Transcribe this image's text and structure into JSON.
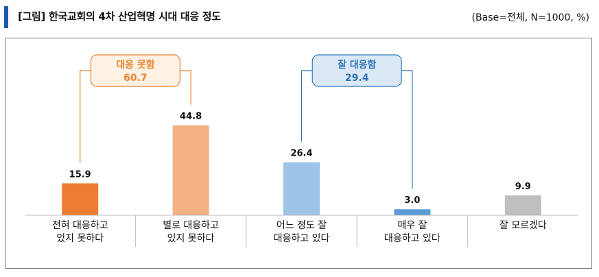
{
  "header": {
    "title": "[그림] 한국교회의 4차 산업혁명 시대 대응 정도",
    "base_note": "(Base=전체, N=1000, %)"
  },
  "groups": [
    {
      "name": "대응 못함",
      "value": "60.7",
      "color": "#e8832f",
      "fill": "#fff1e3"
    },
    {
      "name": "잘 대응함",
      "value": "29.4",
      "color": "#2e75b6",
      "fill": "#dbe8f6"
    }
  ],
  "chart_data": {
    "type": "bar",
    "title": "[그림] 한국교회의 4차 산업혁명 시대 대응 정도",
    "categories": [
      [
        "전혀 대응하고",
        "있지 못하다"
      ],
      [
        "별로 대응하고",
        "있지 못하다"
      ],
      [
        "어느 정도 잘",
        "대응하고 있다"
      ],
      [
        "매우 잘",
        "대응하고 있다"
      ],
      [
        "잘 모르겠다"
      ]
    ],
    "values": [
      15.9,
      44.8,
      26.4,
      3.0,
      9.9
    ],
    "value_labels": [
      "15.9",
      "44.8",
      "26.4",
      "3.0",
      "9.9"
    ],
    "colors": [
      "#ed7d31",
      "#f4b183",
      "#9dc3e6",
      "#5b9bd5",
      "#bfbfbf"
    ],
    "ylim": [
      0,
      60
    ],
    "grid": false,
    "legend": "none"
  }
}
